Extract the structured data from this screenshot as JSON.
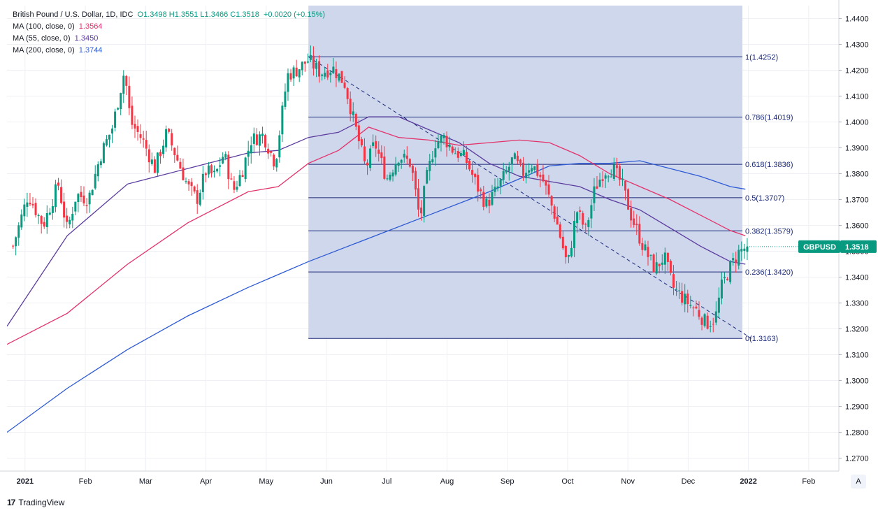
{
  "legend": {
    "title": "British Pound / U.S. Dollar, 1D, IDC",
    "ohlc": "O1.3498  H1.3551  L1.3466  C1.3518",
    "change": "+0.0020 (+0.15%)",
    "ma100_label": "MA (100, close, 0)",
    "ma100_value": "1.3564",
    "ma55_label": "MA (55, close, 0)",
    "ma55_value": "1.3450",
    "ma200_label": "MA (200, close, 0)",
    "ma200_value": "1.3744"
  },
  "symbol_tag": {
    "label": "GBPUSD",
    "value": "1.3518"
  },
  "footer": {
    "brand": "TradingView",
    "auto_button": "A"
  },
  "colors": {
    "up": "#089981",
    "down": "#f23645",
    "ma100": "#e2336b",
    "ma55": "#5b3b9e",
    "ma200": "#2e5bd4",
    "fib_fill": "#ccd5eb",
    "fib_line": "#1c2a7a",
    "tag_bg": "#089981"
  },
  "chart_data": {
    "type": "candlestick",
    "title": "British Pound / U.S. Dollar, 1D, IDC",
    "ylim": [
      1.265,
      1.445
    ],
    "y_ticks": [
      "1.4400",
      "1.4300",
      "1.4200",
      "1.4100",
      "1.4000",
      "1.3900",
      "1.3800",
      "1.3700",
      "1.3600",
      "1.3500",
      "1.3400",
      "1.3300",
      "1.3200",
      "1.3100",
      "1.3000",
      "1.2900",
      "1.2800",
      "1.2700"
    ],
    "x_ticks": [
      {
        "label": "2021",
        "t": 0.3
      },
      {
        "label": "Feb",
        "t": 1.3
      },
      {
        "label": "Mar",
        "t": 2.3
      },
      {
        "label": "Apr",
        "t": 3.3
      },
      {
        "label": "May",
        "t": 4.3
      },
      {
        "label": "Jun",
        "t": 5.3
      },
      {
        "label": "Jul",
        "t": 6.3
      },
      {
        "label": "Aug",
        "t": 7.3
      },
      {
        "label": "Sep",
        "t": 8.3
      },
      {
        "label": "Oct",
        "t": 9.3
      },
      {
        "label": "Nov",
        "t": 10.3
      },
      {
        "label": "Dec",
        "t": 11.3
      },
      {
        "label": "2022",
        "t": 12.3
      },
      {
        "label": "Feb",
        "t": 13.3
      }
    ],
    "candle_anchors": [
      [
        0.1,
        1.352
      ],
      [
        0.35,
        1.372
      ],
      [
        0.6,
        1.36
      ],
      [
        0.85,
        1.376
      ],
      [
        1.0,
        1.358
      ],
      [
        1.15,
        1.372
      ],
      [
        1.35,
        1.37
      ],
      [
        1.55,
        1.387
      ],
      [
        1.75,
        1.398
      ],
      [
        1.95,
        1.42
      ],
      [
        2.05,
        1.4
      ],
      [
        2.25,
        1.393
      ],
      [
        2.45,
        1.382
      ],
      [
        2.65,
        1.396
      ],
      [
        2.8,
        1.387
      ],
      [
        3.0,
        1.375
      ],
      [
        3.15,
        1.37
      ],
      [
        3.3,
        1.381
      ],
      [
        3.45,
        1.379
      ],
      [
        3.6,
        1.388
      ],
      [
        3.75,
        1.373
      ],
      [
        3.9,
        1.381
      ],
      [
        4.05,
        1.393
      ],
      [
        4.25,
        1.395
      ],
      [
        4.45,
        1.384
      ],
      [
        4.65,
        1.418
      ],
      [
        4.8,
        1.42
      ],
      [
        5.0,
        1.424
      ],
      [
        5.2,
        1.419
      ],
      [
        5.4,
        1.421
      ],
      [
        5.6,
        1.415
      ],
      [
        5.8,
        1.396
      ],
      [
        5.95,
        1.382
      ],
      [
        6.1,
        1.392
      ],
      [
        6.3,
        1.378
      ],
      [
        6.5,
        1.387
      ],
      [
        6.7,
        1.384
      ],
      [
        6.85,
        1.362
      ],
      [
        6.95,
        1.377
      ],
      [
        7.1,
        1.392
      ],
      [
        7.25,
        1.394
      ],
      [
        7.4,
        1.389
      ],
      [
        7.6,
        1.386
      ],
      [
        7.8,
        1.375
      ],
      [
        7.95,
        1.368
      ],
      [
        8.1,
        1.373
      ],
      [
        8.25,
        1.379
      ],
      [
        8.4,
        1.386
      ],
      [
        8.55,
        1.38
      ],
      [
        8.7,
        1.384
      ],
      [
        8.9,
        1.377
      ],
      [
        9.1,
        1.363
      ],
      [
        9.3,
        1.344
      ],
      [
        9.45,
        1.366
      ],
      [
        9.6,
        1.358
      ],
      [
        9.75,
        1.374
      ],
      [
        9.9,
        1.381
      ],
      [
        10.05,
        1.382
      ],
      [
        10.2,
        1.376
      ],
      [
        10.35,
        1.364
      ],
      [
        10.55,
        1.352
      ],
      [
        10.75,
        1.343
      ],
      [
        10.9,
        1.348
      ],
      [
        11.05,
        1.336
      ],
      [
        11.25,
        1.331
      ],
      [
        11.45,
        1.327
      ],
      [
        11.6,
        1.322
      ],
      [
        11.75,
        1.324
      ],
      [
        11.85,
        1.336
      ],
      [
        12.0,
        1.344
      ],
      [
        12.15,
        1.35
      ],
      [
        12.3,
        1.352
      ]
    ],
    "ma55": [
      [
        0,
        1.321
      ],
      [
        1,
        1.356
      ],
      [
        2,
        1.376
      ],
      [
        3,
        1.382
      ],
      [
        4,
        1.388
      ],
      [
        4.5,
        1.389
      ],
      [
        5,
        1.394
      ],
      [
        5.5,
        1.396
      ],
      [
        6,
        1.402
      ],
      [
        6.5,
        1.402
      ],
      [
        7,
        1.397
      ],
      [
        7.5,
        1.392
      ],
      [
        8,
        1.384
      ],
      [
        8.5,
        1.379
      ],
      [
        9,
        1.377
      ],
      [
        9.5,
        1.375
      ],
      [
        10,
        1.37
      ],
      [
        10.5,
        1.366
      ],
      [
        11,
        1.359
      ],
      [
        11.5,
        1.352
      ],
      [
        12,
        1.346
      ],
      [
        12.25,
        1.345
      ]
    ],
    "ma100": [
      [
        0,
        1.314
      ],
      [
        1,
        1.326
      ],
      [
        2,
        1.345
      ],
      [
        3,
        1.361
      ],
      [
        4,
        1.373
      ],
      [
        4.5,
        1.375
      ],
      [
        5,
        1.384
      ],
      [
        5.5,
        1.389
      ],
      [
        6,
        1.398
      ],
      [
        6.5,
        1.394
      ],
      [
        7,
        1.393
      ],
      [
        7.5,
        1.391
      ],
      [
        8,
        1.392
      ],
      [
        8.5,
        1.393
      ],
      [
        9,
        1.392
      ],
      [
        9.5,
        1.387
      ],
      [
        10,
        1.38
      ],
      [
        10.5,
        1.375
      ],
      [
        11,
        1.37
      ],
      [
        11.5,
        1.364
      ],
      [
        12,
        1.358
      ],
      [
        12.25,
        1.356
      ]
    ],
    "ma200": [
      [
        0,
        1.28
      ],
      [
        1,
        1.297
      ],
      [
        2,
        1.312
      ],
      [
        3,
        1.325
      ],
      [
        4,
        1.336
      ],
      [
        5,
        1.346
      ],
      [
        6,
        1.355
      ],
      [
        7,
        1.364
      ],
      [
        8,
        1.373
      ],
      [
        8.5,
        1.378
      ],
      [
        9,
        1.383
      ],
      [
        9.5,
        1.384
      ],
      [
        10,
        1.384
      ],
      [
        10.5,
        1.385
      ],
      [
        11,
        1.382
      ],
      [
        11.5,
        1.379
      ],
      [
        12,
        1.375
      ],
      [
        12.25,
        1.374
      ]
    ],
    "trendline": {
      "from": [
        5.0,
        1.4252
      ],
      "to": [
        12.35,
        1.3163
      ],
      "style": "dashed"
    },
    "fibonacci": {
      "t_start": 5.0,
      "t_end": 12.2,
      "levels": [
        {
          "label": "1(1.4252)",
          "value": 1.4252
        },
        {
          "label": "0.786(1.4019)",
          "value": 1.4019
        },
        {
          "label": "0.618(1.3836)",
          "value": 1.3836
        },
        {
          "label": "0.5(1.3707)",
          "value": 1.3707
        },
        {
          "label": "0.382(1.3579)",
          "value": 1.3579
        },
        {
          "label": "0.236(1.3420)",
          "value": 1.342
        },
        {
          "label": "0(1.3163)",
          "value": 1.3163
        }
      ]
    },
    "last_price": 1.3518
  }
}
